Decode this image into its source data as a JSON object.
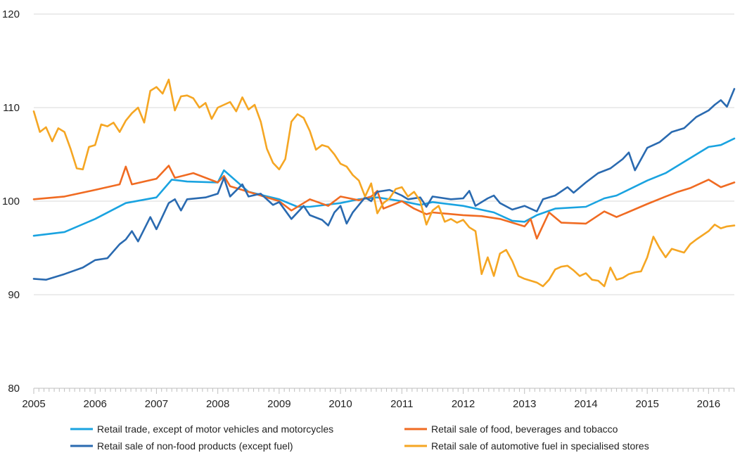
{
  "chart_data": {
    "type": "line",
    "title": "",
    "xlabel": "",
    "ylabel": "",
    "ylim": [
      80,
      120
    ],
    "yticks": [
      80,
      90,
      100,
      110,
      120
    ],
    "xlim": [
      2005,
      2016.42
    ],
    "xticks": [
      2005,
      2006,
      2007,
      2008,
      2009,
      2010,
      2011,
      2012,
      2013,
      2014,
      2015,
      2016
    ],
    "grid": "horizontal",
    "legend": "bottom",
    "series": [
      {
        "name": "Retail trade, except of motor vehicles and motorcycles",
        "color": "#1aa3e0",
        "points": [
          [
            2005,
            96.3
          ],
          [
            2005.5,
            96.7
          ],
          [
            2006,
            98.1
          ],
          [
            2006.5,
            99.8
          ],
          [
            2007,
            100.4
          ],
          [
            2007.25,
            102.3
          ],
          [
            2007.5,
            102.1
          ],
          [
            2008,
            102.0
          ],
          [
            2008.1,
            103.3
          ],
          [
            2008.5,
            101.0
          ],
          [
            2009,
            100.2
          ],
          [
            2009.3,
            99.4
          ],
          [
            2009.5,
            99.4
          ],
          [
            2010,
            99.8
          ],
          [
            2010.3,
            100.2
          ],
          [
            2010.6,
            100.4
          ],
          [
            2011,
            100.0
          ],
          [
            2011.3,
            99.6
          ],
          [
            2011.5,
            99.9
          ],
          [
            2012,
            99.5
          ],
          [
            2012.5,
            98.8
          ],
          [
            2012.8,
            97.9
          ],
          [
            2013,
            97.8
          ],
          [
            2013.2,
            98.5
          ],
          [
            2013.5,
            99.2
          ],
          [
            2014,
            99.4
          ],
          [
            2014.3,
            100.3
          ],
          [
            2014.5,
            100.6
          ],
          [
            2015,
            102.2
          ],
          [
            2015.3,
            103.0
          ],
          [
            2015.6,
            104.2
          ],
          [
            2016,
            105.8
          ],
          [
            2016.2,
            106.0
          ],
          [
            2016.42,
            106.7
          ]
        ]
      },
      {
        "name": "Retail sale of food, beverages and tobacco",
        "color": "#f06b22",
        "points": [
          [
            2005,
            100.2
          ],
          [
            2005.5,
            100.5
          ],
          [
            2006,
            101.2
          ],
          [
            2006.4,
            101.8
          ],
          [
            2006.5,
            103.7
          ],
          [
            2006.6,
            101.8
          ],
          [
            2007,
            102.4
          ],
          [
            2007.2,
            103.8
          ],
          [
            2007.3,
            102.5
          ],
          [
            2007.6,
            103.0
          ],
          [
            2008,
            102.0
          ],
          [
            2008.1,
            102.7
          ],
          [
            2008.2,
            101.6
          ],
          [
            2008.5,
            101.0
          ],
          [
            2009,
            100.0
          ],
          [
            2009.2,
            99.0
          ],
          [
            2009.5,
            100.2
          ],
          [
            2009.8,
            99.5
          ],
          [
            2010,
            100.5
          ],
          [
            2010.3,
            100.1
          ],
          [
            2010.5,
            100.5
          ],
          [
            2010.6,
            101.1
          ],
          [
            2010.7,
            99.2
          ],
          [
            2011,
            100.0
          ],
          [
            2011.2,
            99.2
          ],
          [
            2011.4,
            98.6
          ],
          [
            2011.5,
            98.8
          ],
          [
            2012,
            98.5
          ],
          [
            2012.3,
            98.4
          ],
          [
            2012.6,
            98.1
          ],
          [
            2013,
            97.3
          ],
          [
            2013.1,
            98.1
          ],
          [
            2013.2,
            96.0
          ],
          [
            2013.4,
            98.8
          ],
          [
            2013.6,
            97.7
          ],
          [
            2014,
            97.6
          ],
          [
            2014.3,
            98.9
          ],
          [
            2014.5,
            98.3
          ],
          [
            2015,
            99.7
          ],
          [
            2015.3,
            100.5
          ],
          [
            2015.5,
            101.0
          ],
          [
            2015.7,
            101.4
          ],
          [
            2016,
            102.3
          ],
          [
            2016.2,
            101.5
          ],
          [
            2016.42,
            102.0
          ]
        ]
      },
      {
        "name": "Retail sale of non-food products (except fuel)",
        "color": "#2a6ab0",
        "points": [
          [
            2005,
            91.7
          ],
          [
            2005.2,
            91.6
          ],
          [
            2005.5,
            92.2
          ],
          [
            2005.8,
            92.9
          ],
          [
            2006,
            93.7
          ],
          [
            2006.2,
            93.9
          ],
          [
            2006.4,
            95.4
          ],
          [
            2006.5,
            95.9
          ],
          [
            2006.6,
            96.8
          ],
          [
            2006.7,
            95.7
          ],
          [
            2006.9,
            98.3
          ],
          [
            2007,
            97.0
          ],
          [
            2007.2,
            99.8
          ],
          [
            2007.3,
            100.2
          ],
          [
            2007.4,
            99.0
          ],
          [
            2007.5,
            100.2
          ],
          [
            2007.8,
            100.4
          ],
          [
            2008,
            100.8
          ],
          [
            2008.1,
            102.5
          ],
          [
            2008.2,
            100.5
          ],
          [
            2008.4,
            101.8
          ],
          [
            2008.5,
            100.5
          ],
          [
            2008.7,
            100.8
          ],
          [
            2008.9,
            99.6
          ],
          [
            2009,
            99.9
          ],
          [
            2009.2,
            98.1
          ],
          [
            2009.4,
            99.5
          ],
          [
            2009.5,
            98.5
          ],
          [
            2009.7,
            98.0
          ],
          [
            2009.8,
            97.4
          ],
          [
            2009.9,
            98.8
          ],
          [
            2010,
            99.5
          ],
          [
            2010.1,
            97.6
          ],
          [
            2010.2,
            98.8
          ],
          [
            2010.4,
            100.4
          ],
          [
            2010.5,
            100.0
          ],
          [
            2010.6,
            101.0
          ],
          [
            2010.8,
            101.2
          ],
          [
            2011,
            100.6
          ],
          [
            2011.1,
            100.2
          ],
          [
            2011.3,
            100.4
          ],
          [
            2011.4,
            99.4
          ],
          [
            2011.5,
            100.5
          ],
          [
            2011.8,
            100.2
          ],
          [
            2012,
            100.3
          ],
          [
            2012.1,
            101.1
          ],
          [
            2012.2,
            99.5
          ],
          [
            2012.4,
            100.3
          ],
          [
            2012.5,
            100.6
          ],
          [
            2012.6,
            99.8
          ],
          [
            2012.8,
            99.1
          ],
          [
            2013,
            99.5
          ],
          [
            2013.2,
            98.9
          ],
          [
            2013.3,
            100.2
          ],
          [
            2013.5,
            100.6
          ],
          [
            2013.7,
            101.5
          ],
          [
            2013.8,
            100.9
          ],
          [
            2014,
            102.0
          ],
          [
            2014.2,
            103.0
          ],
          [
            2014.4,
            103.5
          ],
          [
            2014.6,
            104.5
          ],
          [
            2014.7,
            105.2
          ],
          [
            2014.8,
            103.3
          ],
          [
            2015,
            105.7
          ],
          [
            2015.2,
            106.3
          ],
          [
            2015.4,
            107.4
          ],
          [
            2015.6,
            107.8
          ],
          [
            2015.8,
            109.0
          ],
          [
            2016,
            109.7
          ],
          [
            2016.1,
            110.3
          ],
          [
            2016.2,
            110.8
          ],
          [
            2016.3,
            110.1
          ],
          [
            2016.42,
            112.0
          ]
        ]
      },
      {
        "name": "Retail sale of automotive fuel in specialised stores",
        "color": "#f5a623",
        "points": [
          [
            2005,
            109.6
          ],
          [
            2005.1,
            107.4
          ],
          [
            2005.2,
            107.9
          ],
          [
            2005.3,
            106.4
          ],
          [
            2005.4,
            107.8
          ],
          [
            2005.5,
            107.4
          ],
          [
            2005.6,
            105.6
          ],
          [
            2005.7,
            103.5
          ],
          [
            2005.8,
            103.4
          ],
          [
            2005.9,
            105.8
          ],
          [
            2006,
            106.0
          ],
          [
            2006.1,
            108.2
          ],
          [
            2006.2,
            108.0
          ],
          [
            2006.3,
            108.4
          ],
          [
            2006.4,
            107.4
          ],
          [
            2006.5,
            108.6
          ],
          [
            2006.6,
            109.4
          ],
          [
            2006.7,
            110.0
          ],
          [
            2006.8,
            108.4
          ],
          [
            2006.9,
            111.8
          ],
          [
            2007,
            112.2
          ],
          [
            2007.1,
            111.5
          ],
          [
            2007.2,
            113.0
          ],
          [
            2007.3,
            109.7
          ],
          [
            2007.4,
            111.2
          ],
          [
            2007.5,
            111.3
          ],
          [
            2007.6,
            111.0
          ],
          [
            2007.7,
            110.0
          ],
          [
            2007.8,
            110.5
          ],
          [
            2007.9,
            108.8
          ],
          [
            2008,
            110.0
          ],
          [
            2008.2,
            110.6
          ],
          [
            2008.3,
            109.6
          ],
          [
            2008.4,
            111.1
          ],
          [
            2008.5,
            109.8
          ],
          [
            2008.6,
            110.3
          ],
          [
            2008.7,
            108.5
          ],
          [
            2008.8,
            105.6
          ],
          [
            2008.9,
            104.1
          ],
          [
            2009,
            103.4
          ],
          [
            2009.1,
            104.5
          ],
          [
            2009.2,
            108.5
          ],
          [
            2009.3,
            109.3
          ],
          [
            2009.4,
            108.9
          ],
          [
            2009.5,
            107.5
          ],
          [
            2009.6,
            105.5
          ],
          [
            2009.7,
            106.0
          ],
          [
            2009.8,
            105.8
          ],
          [
            2009.9,
            105.0
          ],
          [
            2010,
            104.0
          ],
          [
            2010.1,
            103.7
          ],
          [
            2010.2,
            102.8
          ],
          [
            2010.3,
            102.2
          ],
          [
            2010.4,
            100.5
          ],
          [
            2010.5,
            101.9
          ],
          [
            2010.6,
            98.7
          ],
          [
            2010.7,
            99.8
          ],
          [
            2010.8,
            100.3
          ],
          [
            2010.9,
            101.3
          ],
          [
            2011,
            101.5
          ],
          [
            2011.1,
            100.5
          ],
          [
            2011.2,
            101.0
          ],
          [
            2011.3,
            100.0
          ],
          [
            2011.4,
            97.5
          ],
          [
            2011.5,
            99.0
          ],
          [
            2011.6,
            99.5
          ],
          [
            2011.7,
            97.8
          ],
          [
            2011.8,
            98.1
          ],
          [
            2011.9,
            97.7
          ],
          [
            2012,
            98.0
          ],
          [
            2012.1,
            97.2
          ],
          [
            2012.2,
            96.8
          ],
          [
            2012.3,
            92.2
          ],
          [
            2012.4,
            94.0
          ],
          [
            2012.5,
            92.0
          ],
          [
            2012.6,
            94.4
          ],
          [
            2012.7,
            94.8
          ],
          [
            2012.8,
            93.6
          ],
          [
            2012.9,
            92.0
          ],
          [
            2013,
            91.7
          ],
          [
            2013.2,
            91.3
          ],
          [
            2013.3,
            90.9
          ],
          [
            2013.4,
            91.6
          ],
          [
            2013.5,
            92.7
          ],
          [
            2013.6,
            93.0
          ],
          [
            2013.7,
            93.1
          ],
          [
            2013.8,
            92.6
          ],
          [
            2013.9,
            92.0
          ],
          [
            2014,
            92.3
          ],
          [
            2014.1,
            91.6
          ],
          [
            2014.2,
            91.5
          ],
          [
            2014.3,
            90.9
          ],
          [
            2014.4,
            92.9
          ],
          [
            2014.5,
            91.6
          ],
          [
            2014.6,
            91.8
          ],
          [
            2014.7,
            92.2
          ],
          [
            2014.8,
            92.4
          ],
          [
            2014.9,
            92.5
          ],
          [
            2015,
            94.0
          ],
          [
            2015.1,
            96.2
          ],
          [
            2015.2,
            95.0
          ],
          [
            2015.3,
            94.0
          ],
          [
            2015.4,
            94.9
          ],
          [
            2015.5,
            94.7
          ],
          [
            2015.6,
            94.5
          ],
          [
            2015.7,
            95.4
          ],
          [
            2015.8,
            95.9
          ],
          [
            2016,
            96.8
          ],
          [
            2016.1,
            97.5
          ],
          [
            2016.2,
            97.1
          ],
          [
            2016.3,
            97.3
          ],
          [
            2016.42,
            97.4
          ]
        ]
      }
    ]
  }
}
